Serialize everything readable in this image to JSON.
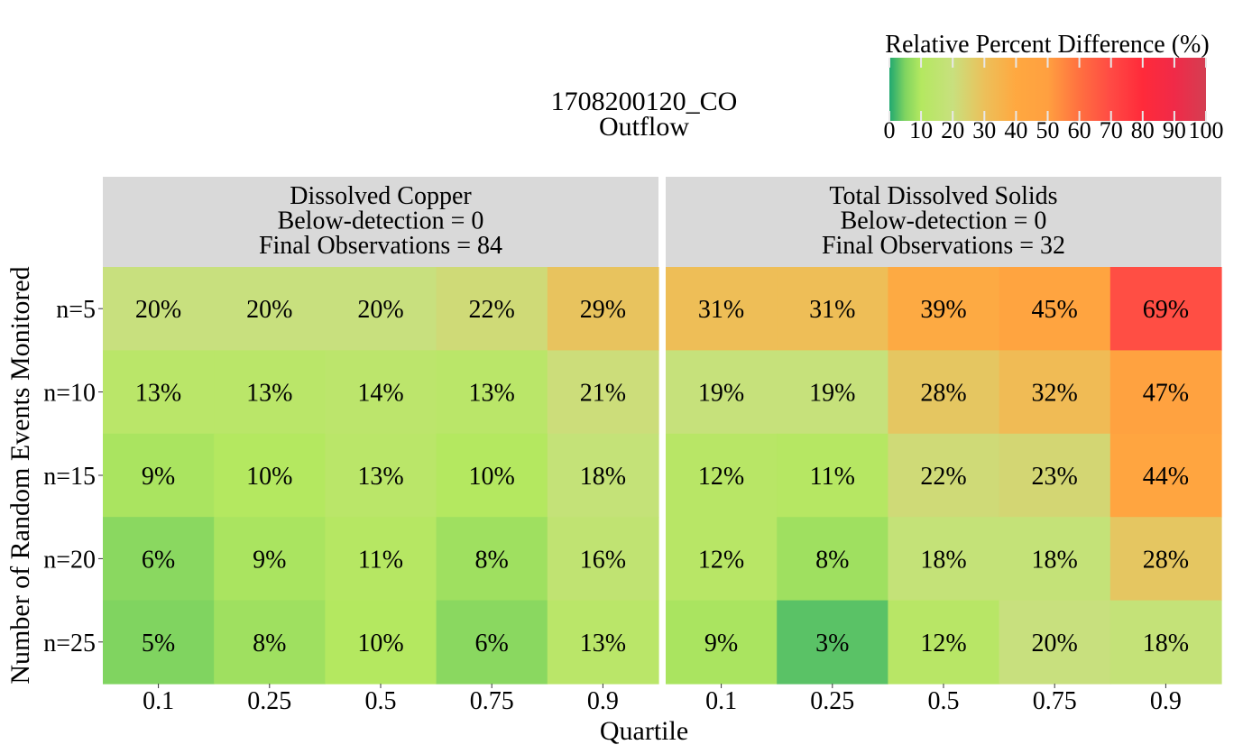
{
  "chart_data": {
    "type": "heatmap",
    "title": "1708200120_CO",
    "subtitle": "Outflow",
    "xlabel": "Quartile",
    "ylabel": "Number of Random Events Monitored",
    "x_categories": [
      "0.1",
      "0.25",
      "0.5",
      "0.75",
      "0.9"
    ],
    "y_categories": [
      "n=5",
      "n=10",
      "n=15",
      "n=20",
      "n=25"
    ],
    "value_suffix": "%",
    "colorbar": {
      "title": "Relative Percent Difference (%)",
      "ticks": [
        "0",
        "10",
        "20",
        "30",
        "40",
        "50",
        "60",
        "70",
        "80",
        "90",
        "100"
      ],
      "range": [
        0,
        100
      ],
      "stops": [
        {
          "v": 0,
          "color": "#20a870"
        },
        {
          "v": 5,
          "color": "#80d460"
        },
        {
          "v": 10,
          "color": "#b4e860"
        },
        {
          "v": 20,
          "color": "#c8e07e"
        },
        {
          "v": 30,
          "color": "#ecc05a"
        },
        {
          "v": 40,
          "color": "#ffa840"
        },
        {
          "v": 50,
          "color": "#ffa040"
        },
        {
          "v": 60,
          "color": "#ff7040"
        },
        {
          "v": 70,
          "color": "#ff4a44"
        },
        {
          "v": 80,
          "color": "#ff2a3a"
        },
        {
          "v": 90,
          "color": "#f02a48"
        },
        {
          "v": 100,
          "color": "#d43e52"
        }
      ]
    },
    "panels": [
      {
        "title_lines": [
          "Dissolved Copper",
          "Below-detection = 0",
          "Final Observations = 84"
        ],
        "values": [
          [
            20,
            20,
            20,
            22,
            29
          ],
          [
            13,
            13,
            14,
            13,
            21
          ],
          [
            9,
            10,
            13,
            10,
            18
          ],
          [
            6,
            9,
            11,
            8,
            16
          ],
          [
            5,
            8,
            10,
            6,
            13
          ]
        ]
      },
      {
        "title_lines": [
          "Total Dissolved Solids",
          "Below-detection = 0",
          "Final Observations = 32"
        ],
        "values": [
          [
            31,
            31,
            39,
            45,
            69
          ],
          [
            19,
            19,
            28,
            32,
            47
          ],
          [
            12,
            11,
            22,
            23,
            44
          ],
          [
            12,
            8,
            18,
            18,
            28
          ],
          [
            9,
            3,
            12,
            20,
            18
          ]
        ]
      }
    ],
    "strip_color": "#d9d9d9"
  }
}
